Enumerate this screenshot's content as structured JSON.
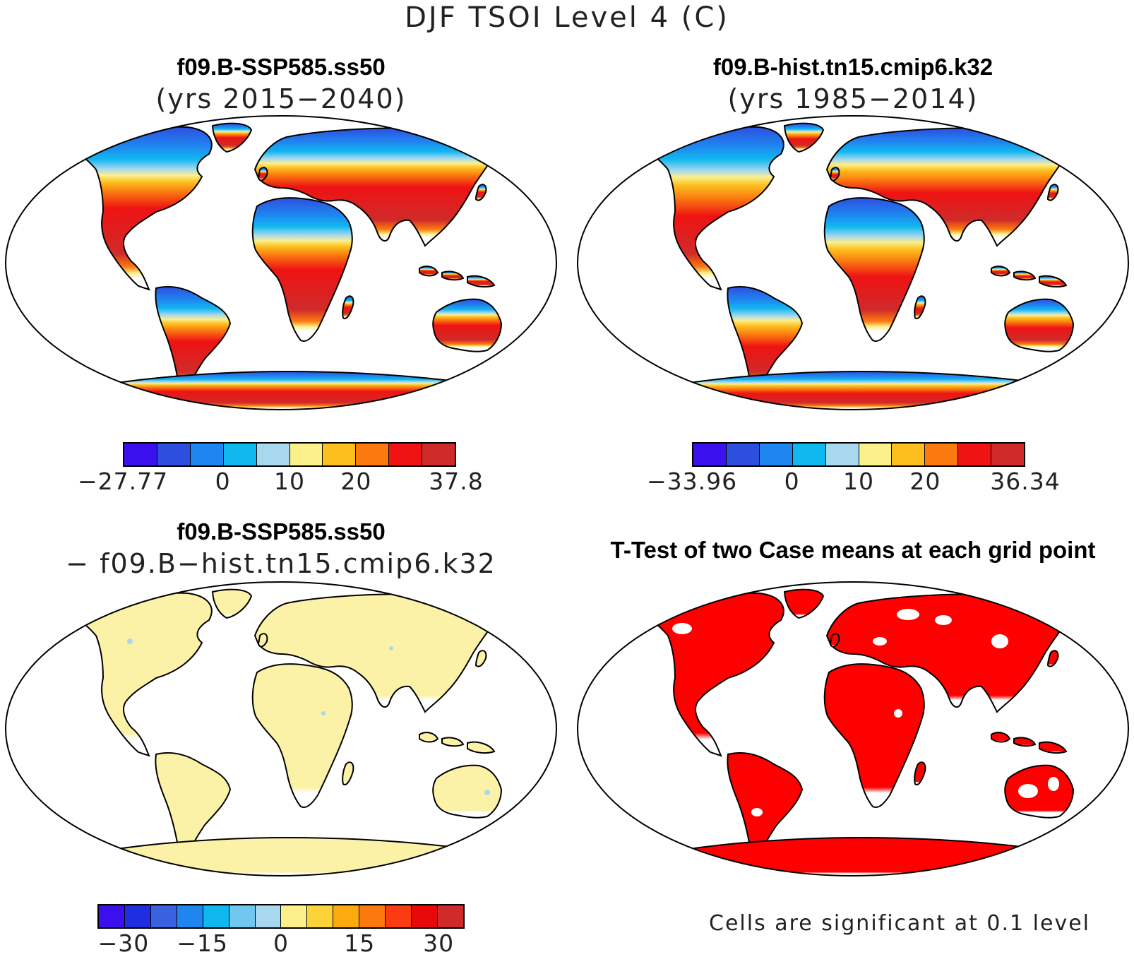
{
  "title": "DJF TSOI Level 4 (C)",
  "panels": [
    {
      "name": "f09.B-SSP585.ss50",
      "subtitle": "(yrs 2015−2040)",
      "colorbar": {
        "colors": [
          "#3a10ef",
          "#2d4fe0",
          "#1f86f0",
          "#10b8f0",
          "#a8d8ee",
          "#fbf08a",
          "#fcbf1e",
          "#fb7a10",
          "#ef1313",
          "#d02a2a"
        ],
        "tick_labels": [
          "−27.77",
          "0",
          "10",
          "20",
          "37.8"
        ]
      }
    },
    {
      "name": "f09.B-hist.tn15.cmip6.k32",
      "subtitle": "(yrs 1985−2014)",
      "colorbar": {
        "colors": [
          "#3a10ef",
          "#2d4fe0",
          "#1f86f0",
          "#10b8f0",
          "#a8d8ee",
          "#fbf08a",
          "#fcbf1e",
          "#fb7a10",
          "#ef1313",
          "#d02a2a"
        ],
        "tick_labels": [
          "−33.96",
          "0",
          "10",
          "20",
          "36.34"
        ]
      }
    },
    {
      "name": "f09.B-SSP585.ss50",
      "subtitle": "− f09.B−hist.tn15.cmip6.k32",
      "colorbar": {
        "colors": [
          "#3a10ef",
          "#1f2fe0",
          "#3a62e0",
          "#1f86f0",
          "#10b8f0",
          "#70c8ee",
          "#a8d8ee",
          "#fbf08a",
          "#fcd43a",
          "#fcaa10",
          "#fb7a10",
          "#fb3c10",
          "#e80a0a",
          "#d02a2a"
        ],
        "tick_labels": [
          "−30",
          "−15",
          "0",
          "15",
          "30"
        ]
      }
    },
    {
      "name": "T-Test of two Case means at each grid point",
      "note": "Cells are significant at 0.1 level"
    }
  ]
}
